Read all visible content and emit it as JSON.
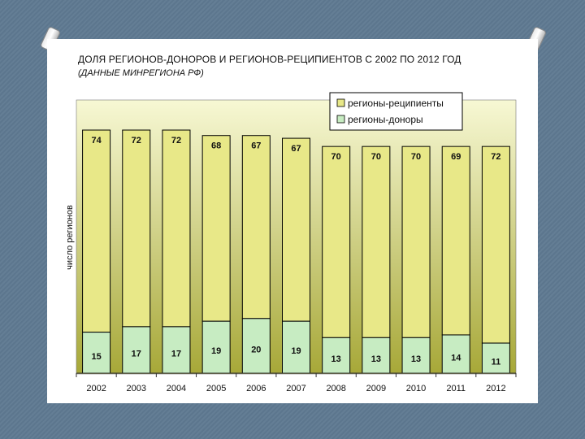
{
  "header": {
    "title": "ДОЛЯ РЕГИОНОВ-ДОНОРОВ И РЕГИОНОВ-РЕЦИПИЕНТОВ С 2002 ПО 2012 ГОД",
    "subtitle": "(ДАННЫЕ МИНРЕГИОНА РФ)"
  },
  "colors": {
    "recipients": "#e8e888",
    "donors": "#c7ecc2",
    "plot_bg_top": "#f7f8d4",
    "plot_bg_bottom": "#a7a838",
    "bar_border": "#000000"
  },
  "chart_data": {
    "type": "bar",
    "stacked": true,
    "title": "ДОЛЯ РЕГИОНОВ-ДОНОРОВ И РЕГИОНОВ-РЕЦИПИЕНТОВ С 2002 ПО 2012 ГОД",
    "subtitle": "(ДАННЫЕ МИНРЕГИОНА РФ)",
    "xlabel": "",
    "ylabel": "число регионов",
    "categories": [
      "2002",
      "2003",
      "2004",
      "2005",
      "2006",
      "2007",
      "2008",
      "2009",
      "2010",
      "2011",
      "2012"
    ],
    "series": [
      {
        "name": "регионы-доноры",
        "values": [
          15,
          17,
          17,
          19,
          20,
          19,
          13,
          13,
          13,
          14,
          11
        ]
      },
      {
        "name": "регионы-реципиенты",
        "values": [
          74,
          72,
          72,
          68,
          67,
          67,
          70,
          70,
          70,
          69,
          72
        ]
      }
    ],
    "legend": {
      "position": "top-right",
      "entries": [
        "регионы-реципиенты",
        "регионы-доноры"
      ]
    },
    "data_labels": true,
    "grid": false
  }
}
